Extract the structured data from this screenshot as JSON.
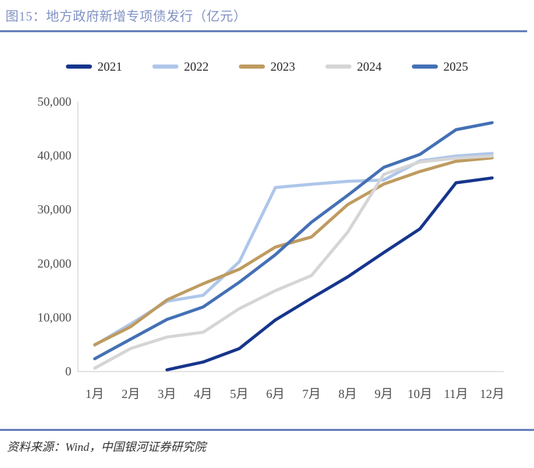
{
  "page": {
    "title": "图15：地方政府新增专项债发行（亿元）",
    "source_note": "资料来源：Wind，中国银河证券研究院"
  },
  "colors": {
    "title_text": "#8092C4",
    "rule": "#6780B8",
    "axis_line": "#D9D9D9",
    "axis_text": "#4D4D4D",
    "legend_text": "#262626"
  },
  "chart_data": {
    "type": "line",
    "title": "地方政府新增专项债发行（亿元）",
    "categories": [
      "1月",
      "2月",
      "3月",
      "4月",
      "5月",
      "6月",
      "7月",
      "8月",
      "9月",
      "10月",
      "11月",
      "12月"
    ],
    "series": [
      {
        "name": "2021",
        "color": "#16358C",
        "values": [
          null,
          null,
          264,
          1700,
          4200,
          9500,
          13546,
          17500,
          22000,
          26400,
          34936,
          35844
        ]
      },
      {
        "name": "2022",
        "color": "#AEC6EA",
        "values": [
          4844,
          8775,
          12981,
          14085,
          20288,
          34062,
          34674,
          35219,
          35444,
          39000,
          39900,
          40384
        ]
      },
      {
        "name": "2023",
        "color": "#BE9B60",
        "values": [
          4912,
          8270,
          13228,
          16217,
          18909,
          23009,
          24896,
          30886,
          34689,
          37037,
          38936,
          39571
        ]
      },
      {
        "name": "2024",
        "color": "#D5D5D5",
        "values": [
          568,
          4228,
          6341,
          7229,
          11608,
          14935,
          17749,
          25775,
          36500,
          38800,
          39500,
          39900
        ]
      },
      {
        "name": "2025",
        "color": "#4470B5",
        "values": [
          2319,
          5968,
          9602,
          11908,
          16503,
          21607,
          27639,
          32605,
          37800,
          40200,
          44787,
          46080
        ]
      }
    ],
    "xlabel": "",
    "ylabel": "",
    "ylim": [
      0,
      50000
    ],
    "ytick_step": 10000,
    "ytick_labels": [
      "0",
      "10,000",
      "20,000",
      "30,000",
      "40,000",
      "50,000"
    ],
    "grid": false,
    "legend_position": "top"
  }
}
